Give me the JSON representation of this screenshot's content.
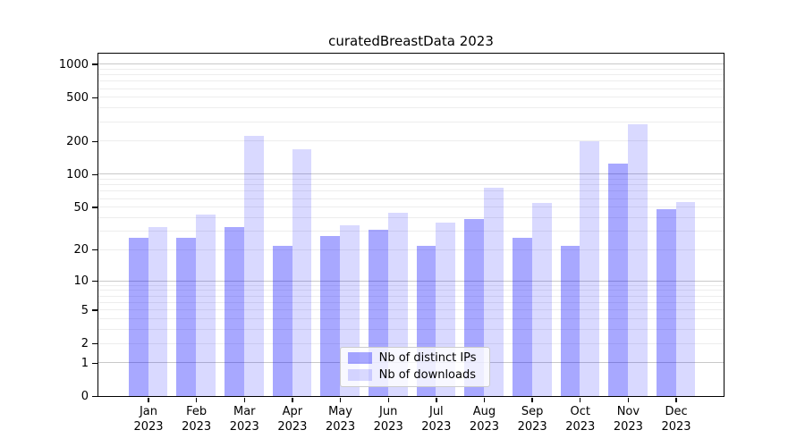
{
  "chart_data": {
    "type": "bar",
    "title": "curatedBreastData 2023",
    "categories": [
      "Jan 2023",
      "Feb 2023",
      "Mar 2023",
      "Apr 2023",
      "May 2023",
      "Jun 2023",
      "Jul 2023",
      "Aug 2023",
      "Sep 2023",
      "Oct 2023",
      "Nov 2023",
      "Dec 2023"
    ],
    "months": [
      "Jan",
      "Feb",
      "Mar",
      "Apr",
      "May",
      "Jun",
      "Jul",
      "Aug",
      "Sep",
      "Oct",
      "Nov",
      "Dec"
    ],
    "year": "2023",
    "series": [
      {
        "name": "Nb of distinct IPs",
        "color": "#0000ff",
        "alpha": 0.34,
        "values": [
          26,
          26,
          33,
          22,
          27,
          31,
          22,
          39,
          26,
          22,
          125,
          48
        ]
      },
      {
        "name": "Nb of downloads",
        "color": "#0000ff",
        "alpha": 0.15,
        "values": [
          33,
          43,
          225,
          168,
          34,
          44,
          36,
          76,
          55,
          200,
          285,
          56
        ]
      }
    ],
    "y_axis": {
      "scale": "log1p",
      "ticks": [
        1000,
        500,
        200,
        100,
        50,
        20,
        10,
        5,
        2,
        1,
        0
      ],
      "ylim": [
        0,
        1000
      ],
      "major_gridlines": [
        1,
        10,
        100,
        1000
      ],
      "minor_gridlines": "2-9, 20-90, 200-900",
      "grid": true
    },
    "x_axis": {
      "label_line2": "2023"
    },
    "legend": {
      "position": "lower-center-inside"
    }
  },
  "colors": {
    "major_grid": "#c9c9c9",
    "minor_grid": "#ededed",
    "axis": "#000000",
    "text": "#000000",
    "legend_border": "#cccccc",
    "legend_background": "rgba(255,255,255,0.8)"
  }
}
